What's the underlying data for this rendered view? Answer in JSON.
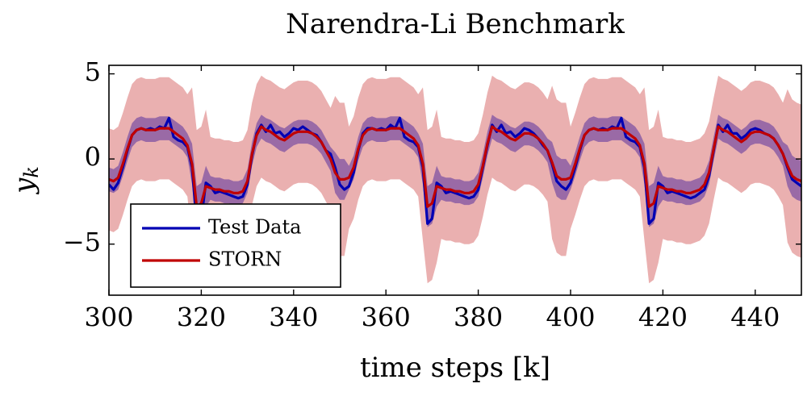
{
  "chart_data": {
    "type": "line",
    "title": "Narendra-Li Benchmark",
    "xlabel": "time steps [k]",
    "ylabel": "y",
    "ylabel_sub": "k",
    "xlim": [
      300,
      450
    ],
    "ylim": [
      -8,
      5.5
    ],
    "xticks": [
      300,
      320,
      340,
      360,
      380,
      400,
      420,
      440
    ],
    "yticks": [
      {
        "value": -5,
        "label": "−5"
      },
      0,
      5
    ],
    "legend": "lower left",
    "x": [
      300,
      301,
      302,
      303,
      304,
      305,
      306,
      307,
      308,
      309,
      310,
      311,
      312,
      313,
      314,
      315,
      316,
      317,
      318,
      319,
      320,
      321,
      322,
      323,
      324,
      325,
      326,
      327,
      328,
      329,
      330,
      331,
      332,
      333,
      334,
      335,
      336,
      337,
      338,
      339,
      340,
      341,
      342,
      343,
      344,
      345,
      346,
      347,
      348,
      349,
      350,
      351,
      352,
      353,
      354,
      355,
      356,
      357,
      358,
      359,
      360,
      361,
      362,
      363,
      364,
      365,
      366,
      367,
      368,
      369,
      370,
      371,
      372,
      373,
      374,
      375,
      376,
      377,
      378,
      379,
      380,
      381,
      382,
      383,
      384,
      385,
      386,
      387,
      388,
      389,
      390,
      391,
      392,
      393,
      394,
      395,
      396,
      397,
      398,
      399,
      400,
      401,
      402,
      403,
      404,
      405,
      406,
      407,
      408,
      409,
      410,
      411,
      412,
      413,
      414,
      415,
      416,
      417,
      418,
      419,
      420,
      421,
      422,
      423,
      424,
      425,
      426,
      427,
      428,
      429,
      430,
      431,
      432,
      433,
      434,
      435,
      436,
      437,
      438,
      439,
      440,
      441,
      442,
      443,
      444,
      445,
      446,
      447,
      448,
      449,
      450
    ],
    "series": [
      {
        "name": "Test Data",
        "color": "#0000b4",
        "values": [
          -1.5,
          -1.8,
          -1.4,
          -0.5,
          0.5,
          1.4,
          1.7,
          1.8,
          1.7,
          1.8,
          1.7,
          1.9,
          1.8,
          2.4,
          1.3,
          1.1,
          1.0,
          0.7,
          -0.5,
          -3.8,
          -3.5,
          -1.4,
          -1.6,
          -2.0,
          -1.9,
          -2.0,
          -2.1,
          -2.2,
          -2.3,
          -2.2,
          -1.5,
          0.2,
          1.5,
          2.0,
          1.6,
          2.0,
          1.5,
          1.6,
          1.3,
          1.5,
          1.8,
          1.7,
          1.9,
          1.7,
          1.5,
          1.4,
          1.0,
          0.5,
          0.3,
          -0.5,
          -1.5,
          -1.8,
          -1.6,
          -0.8,
          0.5,
          1.5,
          1.8,
          1.8,
          1.7,
          1.8,
          1.7,
          2.0,
          1.8,
          2.4,
          1.3,
          1.1,
          1.0,
          0.7,
          -0.5,
          -3.8,
          -3.5,
          -1.4,
          -1.6,
          -2.0,
          -1.9,
          -2.0,
          -2.1,
          -2.2,
          -2.3,
          -2.2,
          -1.8,
          -0.5,
          0.8,
          2.0,
          1.6,
          2.0,
          1.5,
          1.6,
          1.3,
          1.5,
          1.8,
          1.7,
          1.5,
          1.2,
          0.8,
          0.5,
          -0.3,
          -1.3,
          -1.6,
          -1.8,
          -1.4,
          -0.5,
          0.5,
          1.4,
          1.7,
          1.8,
          1.7,
          1.8,
          1.7,
          1.9,
          1.8,
          2.4,
          1.3,
          1.1,
          1.0,
          0.7,
          -0.5,
          -3.8,
          -3.5,
          -1.4,
          -1.6,
          -2.0,
          -1.9,
          -2.0,
          -2.1,
          -2.2,
          -2.3,
          -2.2,
          -2.0,
          -1.8,
          -1.0,
          0.5,
          2.0,
          1.6,
          2.0,
          1.5,
          1.5,
          1.2,
          1.4,
          1.7,
          1.8,
          1.7,
          1.5,
          1.4,
          1.2,
          0.8,
          0.3,
          -0.5,
          -1.2,
          -1.4,
          -1.6
        ]
      },
      {
        "name": "STORN",
        "color": "#c00000",
        "band_colors": [
          "#eab0b0",
          "#9a6aa6"
        ],
        "values": [
          -1.2,
          -1.3,
          -1.1,
          -0.3,
          0.6,
          1.4,
          1.7,
          1.8,
          1.7,
          1.7,
          1.7,
          1.8,
          1.8,
          1.8,
          1.6,
          1.4,
          1.2,
          0.8,
          -0.3,
          -2.8,
          -2.6,
          -1.6,
          -1.7,
          -1.8,
          -1.8,
          -1.9,
          -1.9,
          -2.0,
          -2.0,
          -1.9,
          -1.3,
          0.3,
          1.4,
          1.9,
          1.7,
          1.6,
          1.4,
          1.2,
          1.1,
          1.3,
          1.5,
          1.6,
          1.6,
          1.6,
          1.5,
          1.3,
          1.0,
          0.5,
          0.0,
          -0.8,
          -1.2,
          -1.2,
          -1.1,
          -0.5,
          0.6,
          1.4,
          1.7,
          1.8,
          1.7,
          1.7,
          1.7,
          1.8,
          1.8,
          1.8,
          1.6,
          1.4,
          1.2,
          0.8,
          -0.3,
          -2.8,
          -2.6,
          -1.6,
          -1.7,
          -1.8,
          -1.8,
          -1.9,
          -1.9,
          -2.0,
          -2.0,
          -1.9,
          -1.5,
          -0.4,
          0.9,
          1.9,
          1.7,
          1.6,
          1.4,
          1.2,
          1.1,
          1.3,
          1.5,
          1.5,
          1.4,
          1.2,
          0.9,
          0.5,
          -0.2,
          -1.0,
          -1.2,
          -1.2,
          -1.1,
          -0.3,
          0.6,
          1.4,
          1.7,
          1.8,
          1.7,
          1.7,
          1.7,
          1.8,
          1.8,
          1.8,
          1.6,
          1.4,
          1.2,
          0.8,
          -0.3,
          -2.8,
          -2.6,
          -1.6,
          -1.7,
          -1.8,
          -1.8,
          -1.9,
          -1.9,
          -2.0,
          -2.0,
          -1.9,
          -1.8,
          -1.5,
          -0.8,
          0.6,
          1.9,
          1.7,
          1.6,
          1.4,
          1.2,
          1.0,
          1.2,
          1.5,
          1.6,
          1.6,
          1.5,
          1.4,
          1.2,
          0.8,
          0.3,
          -0.4,
          -1.0,
          -1.2,
          -1.3
        ],
        "band_outer": [
          3,
          3,
          3,
          3,
          3,
          3,
          3,
          3,
          3,
          3,
          3,
          3,
          3,
          3,
          3,
          3,
          3,
          3,
          4.5,
          4.5,
          4.5,
          4.5,
          3,
          3,
          3,
          3,
          3,
          3,
          3,
          3,
          3,
          3,
          3,
          3,
          3,
          3,
          3,
          3,
          3,
          3,
          3,
          3,
          3,
          3,
          3,
          3,
          3,
          3,
          3,
          4.5,
          4.5,
          4.5,
          3,
          3,
          3,
          3,
          3,
          3,
          3,
          3,
          3,
          3,
          3,
          3,
          3,
          3,
          3,
          3,
          4.5,
          4.5,
          4.5,
          4.5,
          3,
          3,
          3,
          3,
          3,
          3,
          3,
          3,
          3,
          3,
          3,
          3,
          3,
          3,
          3,
          3,
          3,
          3,
          3,
          3,
          3,
          3,
          3,
          3,
          4.5,
          4.5,
          4.5,
          4.5,
          3,
          3,
          3,
          3,
          3,
          3,
          3,
          3,
          3,
          3,
          3,
          3,
          3,
          3,
          3,
          3,
          4.5,
          4.5,
          4.5,
          4.5,
          3,
          3,
          3,
          3,
          3,
          3,
          3,
          3,
          3,
          3,
          3,
          3,
          3,
          3,
          3,
          3,
          3,
          3,
          3,
          3,
          3,
          3,
          3,
          3,
          3,
          3,
          3,
          4.5,
          4.5,
          4.5,
          4.5
        ],
        "band_inner": [
          0.7,
          0.7,
          0.7,
          0.7,
          0.7,
          0.7,
          0.7,
          0.7,
          0.7,
          0.7,
          0.7,
          0.7,
          0.7,
          0.7,
          0.7,
          0.7,
          0.7,
          0.7,
          1.2,
          1.2,
          1.2,
          1.2,
          0.7,
          0.7,
          0.7,
          0.7,
          0.7,
          0.7,
          0.7,
          0.7,
          0.7,
          0.7,
          0.7,
          0.7,
          0.7,
          0.7,
          0.7,
          0.7,
          0.7,
          0.7,
          0.7,
          0.7,
          0.7,
          0.7,
          0.7,
          0.7,
          0.7,
          0.7,
          0.7,
          1.2,
          1.2,
          1.2,
          0.7,
          0.7,
          0.7,
          0.7,
          0.7,
          0.7,
          0.7,
          0.7,
          0.7,
          0.7,
          0.7,
          0.7,
          0.7,
          0.7,
          0.7,
          0.7,
          1.2,
          1.2,
          1.2,
          1.2,
          0.7,
          0.7,
          0.7,
          0.7,
          0.7,
          0.7,
          0.7,
          0.7,
          0.7,
          0.7,
          0.7,
          0.7,
          0.7,
          0.7,
          0.7,
          0.7,
          0.7,
          0.7,
          0.7,
          0.7,
          0.7,
          0.7,
          0.7,
          0.7,
          1.2,
          1.2,
          1.2,
          1.2,
          0.7,
          0.7,
          0.7,
          0.7,
          0.7,
          0.7,
          0.7,
          0.7,
          0.7,
          0.7,
          0.7,
          0.7,
          0.7,
          0.7,
          0.7,
          0.7,
          1.2,
          1.2,
          1.2,
          1.2,
          0.7,
          0.7,
          0.7,
          0.7,
          0.7,
          0.7,
          0.7,
          0.7,
          0.7,
          0.7,
          0.7,
          0.7,
          0.7,
          0.7,
          0.7,
          0.7,
          0.7,
          0.7,
          0.7,
          0.7,
          0.7,
          0.7,
          0.7,
          0.7,
          0.7,
          0.7,
          0.7,
          1.2,
          1.2,
          1.2,
          1.2
        ]
      }
    ]
  }
}
